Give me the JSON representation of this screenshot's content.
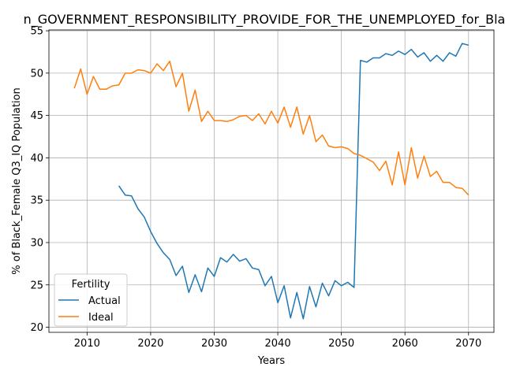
{
  "chart_data": {
    "type": "line",
    "title": "n_GOVERNMENT_RESPONSIBILITY_PROVIDE_FOR_THE_UNEMPLOYED_for_Black",
    "xlabel": "Years",
    "ylabel": "% of Black_Female Q3_IQ Population",
    "xlim": [
      2004,
      2074
    ],
    "ylim": [
      19.4,
      55.1
    ],
    "xticks": [
      2010,
      2020,
      2030,
      2040,
      2050,
      2060,
      2070
    ],
    "yticks": [
      20,
      25,
      30,
      35,
      40,
      45,
      50,
      55
    ],
    "grid": true,
    "legend": {
      "title": "Fertility",
      "position": "lower-left"
    },
    "series": [
      {
        "name": "Actual",
        "color": "#1f77b4",
        "x": [
          2015,
          2016,
          2017,
          2018,
          2019,
          2020,
          2021,
          2022,
          2023,
          2024,
          2025,
          2026,
          2027,
          2028,
          2029,
          2030,
          2031,
          2032,
          2033,
          2034,
          2035,
          2036,
          2037,
          2038,
          2039,
          2040,
          2041,
          2042,
          2043,
          2044,
          2045,
          2046,
          2047,
          2048,
          2049,
          2050,
          2051,
          2052,
          2053,
          2054,
          2055,
          2056,
          2057,
          2058,
          2059,
          2060,
          2061,
          2062,
          2063,
          2064,
          2065,
          2066,
          2067,
          2068,
          2069,
          2070
        ],
        "y": [
          36.7,
          35.6,
          35.5,
          34.0,
          33.0,
          31.3,
          29.9,
          28.8,
          28.0,
          26.1,
          27.2,
          24.1,
          26.2,
          24.2,
          27.0,
          26.0,
          28.2,
          27.7,
          28.6,
          27.8,
          28.1,
          27.0,
          26.8,
          24.9,
          26.0,
          22.9,
          24.9,
          21.1,
          24.1,
          21.0,
          24.8,
          22.4,
          25.2,
          23.7,
          25.5,
          24.9,
          25.3,
          24.7,
          51.5,
          51.3,
          51.8,
          51.8,
          52.3,
          52.1,
          52.6,
          52.2,
          52.8,
          51.9,
          52.4,
          51.4,
          52.1,
          51.4,
          52.4,
          52.0,
          53.5,
          53.3
        ]
      },
      {
        "name": "Ideal",
        "color": "#ff7f0e",
        "x": [
          2008,
          2009,
          2010,
          2011,
          2012,
          2013,
          2014,
          2015,
          2016,
          2017,
          2018,
          2019,
          2020,
          2021,
          2022,
          2023,
          2024,
          2025,
          2026,
          2027,
          2028,
          2029,
          2030,
          2031,
          2032,
          2033,
          2034,
          2035,
          2036,
          2037,
          2038,
          2039,
          2040,
          2041,
          2042,
          2043,
          2044,
          2045,
          2046,
          2047,
          2048,
          2049,
          2050,
          2051,
          2052,
          2053,
          2054,
          2055,
          2056,
          2057,
          2058,
          2059,
          2060,
          2061,
          2062,
          2063,
          2064,
          2065,
          2066,
          2067,
          2068,
          2069,
          2070
        ],
        "y": [
          48.2,
          50.5,
          47.5,
          49.6,
          48.1,
          48.1,
          48.5,
          48.6,
          50.0,
          50.0,
          50.4,
          50.3,
          50.0,
          51.1,
          50.3,
          51.4,
          48.4,
          50.0,
          45.5,
          48.0,
          44.3,
          45.5,
          44.4,
          44.4,
          44.3,
          44.5,
          44.9,
          45.0,
          44.4,
          45.2,
          44.0,
          45.5,
          44.1,
          46.0,
          43.6,
          46.0,
          42.8,
          45.0,
          41.9,
          42.7,
          41.4,
          41.2,
          41.3,
          41.1,
          40.5,
          40.3,
          39.9,
          39.5,
          38.5,
          39.6,
          36.8,
          40.7,
          36.8,
          41.2,
          37.6,
          40.2,
          37.8,
          38.4,
          37.1,
          37.1,
          36.5,
          36.4,
          35.6
        ]
      }
    ]
  }
}
